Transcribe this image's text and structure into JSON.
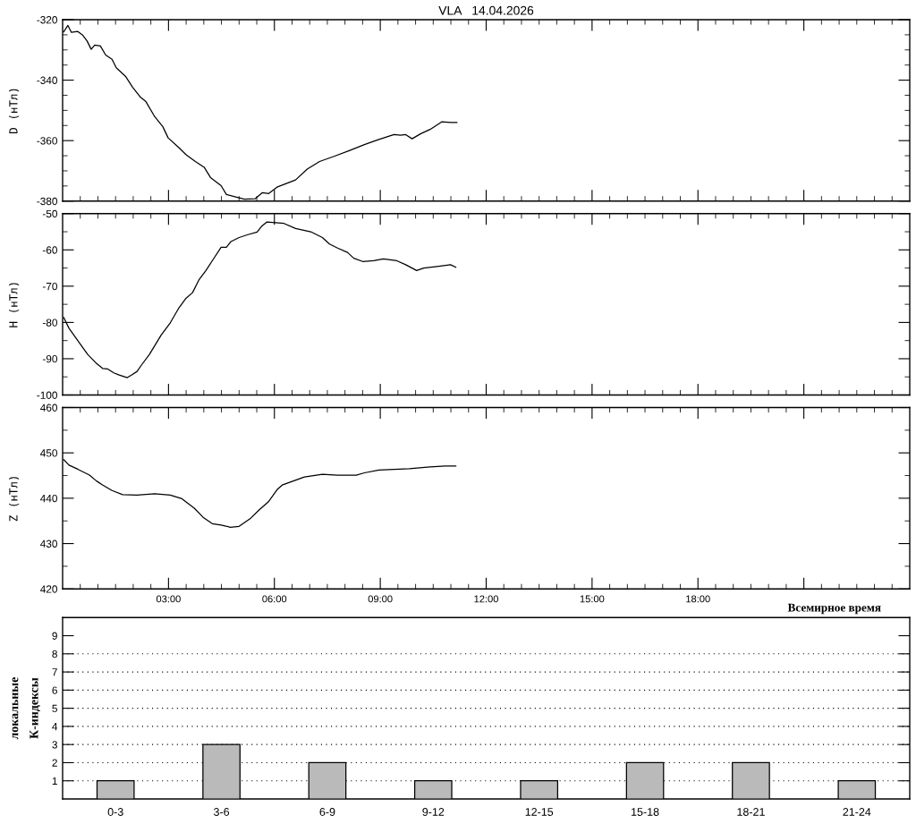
{
  "chart_data": [
    {
      "type": "line",
      "title": "VLA   14.04.2026",
      "ylabel": "D (нТл)",
      "color": "#000000",
      "line_style": "solid",
      "x": [
        0.03,
        0.15,
        0.25,
        0.43,
        0.56,
        0.69,
        0.81,
        0.91,
        1.07,
        1.22,
        1.4,
        1.52,
        1.78,
        1.98,
        2.21,
        2.36,
        2.61,
        2.84,
        2.99,
        3.3,
        3.5,
        3.76,
        4.01,
        4.19,
        4.49,
        4.64,
        5.0,
        5.15,
        5.46,
        5.66,
        5.84,
        6.09,
        6.6,
        6.93,
        7.28,
        7.69,
        8.12,
        8.55,
        8.96,
        9.39,
        9.57,
        9.72,
        9.9,
        10.15,
        10.41,
        10.74,
        10.99,
        11.17
      ],
      "values": [
        -324.0,
        -321.9,
        -324.2,
        -323.9,
        -325.0,
        -327.0,
        -329.8,
        -328.4,
        -328.7,
        -331.7,
        -333.1,
        -335.9,
        -338.7,
        -342.3,
        -345.7,
        -347.1,
        -352.1,
        -355.4,
        -359.1,
        -362.4,
        -364.7,
        -366.9,
        -368.8,
        -372.2,
        -374.9,
        -377.8,
        -378.9,
        -379.4,
        -379.2,
        -377.2,
        -377.5,
        -375.3,
        -373.0,
        -369.4,
        -366.9,
        -365.2,
        -363.3,
        -361.3,
        -359.6,
        -358.0,
        -358.2,
        -358.0,
        -359.4,
        -357.7,
        -356.3,
        -353.8,
        -354.0,
        -354.0
      ],
      "xlim": [
        0,
        24
      ],
      "ylim": [
        -380,
        -320
      ],
      "yticks": [
        -380,
        -360,
        -340,
        -320
      ],
      "tick_labels": "y"
    },
    {
      "type": "line",
      "ylabel": "H (нТл)",
      "color": "#000000",
      "line_style": "solid",
      "x": [
        0.03,
        0.18,
        0.46,
        0.71,
        0.94,
        1.14,
        1.27,
        1.45,
        1.6,
        1.83,
        1.95,
        2.11,
        2.23,
        2.46,
        2.79,
        3.05,
        3.3,
        3.5,
        3.68,
        3.86,
        4.06,
        4.26,
        4.49,
        4.64,
        4.77,
        5.0,
        5.25,
        5.51,
        5.63,
        5.79,
        6.27,
        6.6,
        7.03,
        7.36,
        7.56,
        7.79,
        8.07,
        8.25,
        8.5,
        8.81,
        9.09,
        9.47,
        9.72,
        10.03,
        10.23,
        10.66,
        10.99,
        11.14
      ],
      "values": [
        -78.6,
        -81.6,
        -85.4,
        -88.8,
        -91.1,
        -92.7,
        -92.8,
        -93.9,
        -94.5,
        -95.2,
        -94.5,
        -93.5,
        -91.8,
        -88.8,
        -83.5,
        -80.1,
        -75.9,
        -73.3,
        -71.8,
        -68.3,
        -65.7,
        -62.7,
        -59.3,
        -59.3,
        -57.7,
        -56.6,
        -55.8,
        -55.1,
        -53.6,
        -52.3,
        -52.7,
        -54.1,
        -55.0,
        -56.6,
        -58.4,
        -59.5,
        -60.7,
        -62.3,
        -63.2,
        -63.0,
        -62.5,
        -63.0,
        -64.1,
        -65.7,
        -65.0,
        -64.5,
        -64.1,
        -64.8
      ],
      "xlim": [
        0,
        24
      ],
      "ylim": [
        -100,
        -50
      ],
      "yticks": [
        -100,
        -90,
        -80,
        -70,
        -60,
        -50
      ],
      "tick_labels": "y"
    },
    {
      "type": "line",
      "ylabel": "Z (нТл)",
      "xlabel": "Всемирное время",
      "color": "#000000",
      "line_style": "solid",
      "x": [
        0.03,
        0.18,
        0.43,
        0.76,
        0.96,
        1.14,
        1.4,
        1.7,
        2.11,
        2.61,
        3.05,
        3.38,
        3.73,
        3.98,
        4.24,
        4.49,
        4.75,
        5.0,
        5.33,
        5.58,
        5.84,
        6.09,
        6.22,
        6.85,
        7.36,
        7.79,
        8.32,
        8.55,
        8.96,
        9.82,
        10.41,
        10.84,
        11.14
      ],
      "values": [
        448.5,
        447.3,
        446.4,
        445.1,
        443.8,
        442.9,
        441.7,
        440.8,
        440.7,
        441.0,
        440.7,
        439.9,
        437.8,
        435.8,
        434.4,
        434.1,
        433.6,
        433.8,
        435.6,
        437.5,
        439.3,
        442.0,
        442.9,
        444.7,
        445.3,
        445.1,
        445.1,
        445.6,
        446.2,
        446.5,
        446.9,
        447.1,
        447.1
      ],
      "xlim": [
        0,
        24
      ],
      "xticks": [
        {
          "value": 3,
          "label": "03:00"
        },
        {
          "value": 6,
          "label": "06:00"
        },
        {
          "value": 9,
          "label": "09:00"
        },
        {
          "value": 12,
          "label": "12:00"
        },
        {
          "value": 15,
          "label": "15:00"
        },
        {
          "value": 18,
          "label": "18:00"
        },
        {
          "value": 21,
          "label": null
        }
      ],
      "ylim": [
        420,
        460
      ],
      "yticks": [
        420,
        430,
        440,
        450,
        460
      ]
    },
    {
      "type": "bar",
      "ylabel": "локальные\nК-индексы",
      "categories": [
        "0-3",
        "3-6",
        "6-9",
        "9-12",
        "12-15",
        "15-18",
        "18-21",
        "21-24"
      ],
      "values": [
        1,
        3,
        2,
        1,
        1,
        2,
        2,
        1
      ],
      "color": "#bababa",
      "ylim": [
        0,
        10
      ],
      "yticks": [
        1,
        2,
        3,
        4,
        5,
        6,
        7,
        8,
        9
      ],
      "ref_lines": [
        {
          "axis": "y",
          "value": 1,
          "color": "#000000",
          "line_style": "dotted"
        },
        {
          "axis": "y",
          "value": 2,
          "color": "#000000",
          "line_style": "dotted"
        },
        {
          "axis": "y",
          "value": 3,
          "color": "#000000",
          "line_style": "dotted"
        },
        {
          "axis": "y",
          "value": 4,
          "color": "#000000",
          "line_style": "dotted"
        },
        {
          "axis": "y",
          "value": 5,
          "color": "#000000",
          "line_style": "dotted"
        },
        {
          "axis": "y",
          "value": 6,
          "color": "#000000",
          "line_style": "dotted"
        },
        {
          "axis": "y",
          "value": 7,
          "color": "#000000",
          "line_style": "dotted"
        },
        {
          "axis": "y",
          "value": 8,
          "color": "#000000",
          "line_style": "dotted"
        }
      ]
    }
  ]
}
